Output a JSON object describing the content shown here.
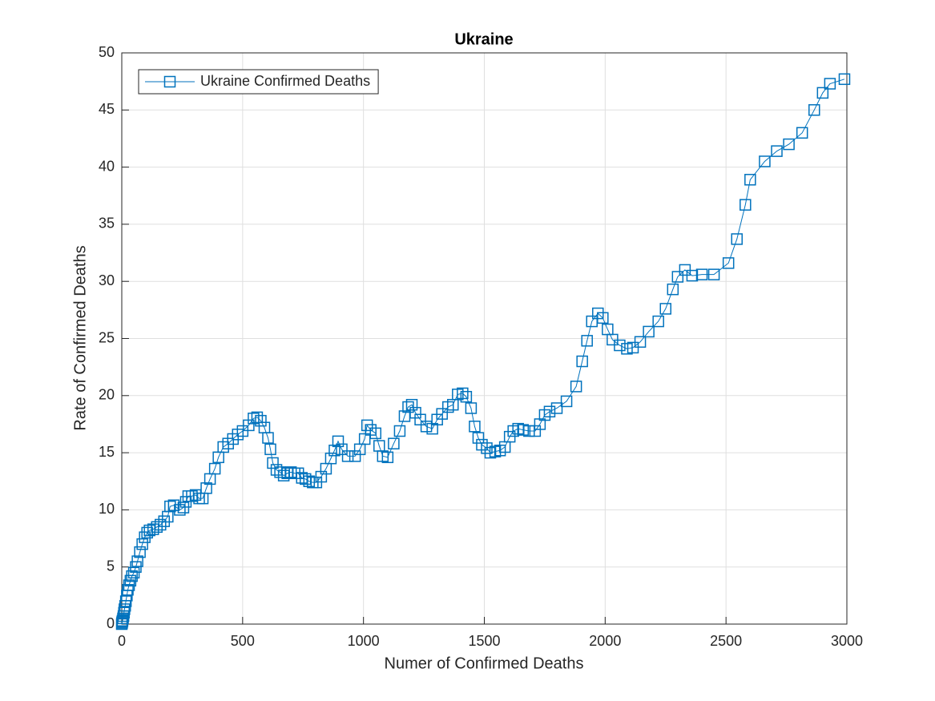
{
  "chart_data": {
    "type": "line",
    "title": "Ukraine",
    "xlabel": "Numer of Confirmed Deaths",
    "ylabel": "Rate of Confirmed Deaths",
    "xlim": [
      0,
      3000
    ],
    "ylim": [
      0,
      50
    ],
    "xticks": [
      0,
      500,
      1000,
      1500,
      2000,
      2500,
      3000
    ],
    "yticks": [
      0,
      5,
      10,
      15,
      20,
      25,
      30,
      35,
      40,
      45,
      50
    ],
    "grid": true,
    "legend": "northwest",
    "marker": "square",
    "series": [
      {
        "name": "Ukraine Confirmed Deaths",
        "color": "#0072BD",
        "x": [
          0,
          1,
          2,
          3,
          5,
          7,
          9,
          11,
          14,
          17,
          21,
          25,
          30,
          36,
          42,
          50,
          58,
          65,
          75,
          85,
          95,
          105,
          115,
          130,
          145,
          160,
          175,
          190,
          200,
          215,
          240,
          255,
          265,
          275,
          290,
          305,
          320,
          335,
          350,
          365,
          385,
          400,
          420,
          440,
          460,
          480,
          500,
          525,
          545,
          560,
          575,
          590,
          605,
          615,
          625,
          640,
          655,
          670,
          685,
          700,
          715,
          730,
          745,
          760,
          775,
          790,
          805,
          825,
          845,
          865,
          880,
          895,
          910,
          935,
          965,
          985,
          1005,
          1015,
          1030,
          1050,
          1065,
          1080,
          1100,
          1125,
          1150,
          1170,
          1185,
          1200,
          1215,
          1235,
          1260,
          1285,
          1305,
          1325,
          1350,
          1370,
          1390,
          1410,
          1425,
          1445,
          1460,
          1475,
          1490,
          1510,
          1525,
          1545,
          1565,
          1585,
          1605,
          1620,
          1640,
          1660,
          1685,
          1710,
          1730,
          1750,
          1770,
          1800,
          1840,
          1880,
          1905,
          1925,
          1945,
          1970,
          1990,
          2010,
          2030,
          2060,
          2090,
          2115,
          2145,
          2180,
          2220,
          2250,
          2280,
          2300,
          2330,
          2360,
          2400,
          2450,
          2510,
          2545,
          2580,
          2600,
          2660,
          2710,
          2760,
          2815,
          2865,
          2900,
          2930,
          2990
        ],
        "values": [
          0,
          0.1,
          0.2,
          0.3,
          0.5,
          0.7,
          1.0,
          1.3,
          1.6,
          2.0,
          2.5,
          3.0,
          3.4,
          3.8,
          4.2,
          4.5,
          5.0,
          5.5,
          6.3,
          7.0,
          7.6,
          8.0,
          8.2,
          8.3,
          8.5,
          8.7,
          9.0,
          9.4,
          10.3,
          10.4,
          10.0,
          10.2,
          10.7,
          11.2,
          11.2,
          11.3,
          11.0,
          11.0,
          11.9,
          12.7,
          13.6,
          14.6,
          15.5,
          15.8,
          16.2,
          16.6,
          16.9,
          17.4,
          18.0,
          18.1,
          17.8,
          17.2,
          16.3,
          15.3,
          14.1,
          13.5,
          13.3,
          13.0,
          13.2,
          13.3,
          13.2,
          13.2,
          12.8,
          12.7,
          12.5,
          12.4,
          12.4,
          12.9,
          13.6,
          14.5,
          15.2,
          16.0,
          15.3,
          14.7,
          14.7,
          15.3,
          16.2,
          17.4,
          17.0,
          16.7,
          15.6,
          14.7,
          14.6,
          15.8,
          16.9,
          18.2,
          19.0,
          19.2,
          18.5,
          17.9,
          17.3,
          17.1,
          17.9,
          18.4,
          19.0,
          19.2,
          20.1,
          20.2,
          19.9,
          18.9,
          17.3,
          16.3,
          15.7,
          15.4,
          15.0,
          15.1,
          15.2,
          15.5,
          16.4,
          16.9,
          17.1,
          17.0,
          16.9,
          16.9,
          17.5,
          18.3,
          18.6,
          18.9,
          19.5,
          20.8,
          23.0,
          24.8,
          26.5,
          27.2,
          26.8,
          25.8,
          24.9,
          24.4,
          24.1,
          24.2,
          24.7,
          25.6,
          26.5,
          27.6,
          29.3,
          30.4,
          31.0,
          30.5,
          30.6,
          30.6,
          31.6,
          33.7,
          36.7,
          38.9,
          40.5,
          41.4,
          42.0,
          43.0,
          45.0,
          46.5,
          47.3,
          47.7
        ]
      }
    ]
  }
}
